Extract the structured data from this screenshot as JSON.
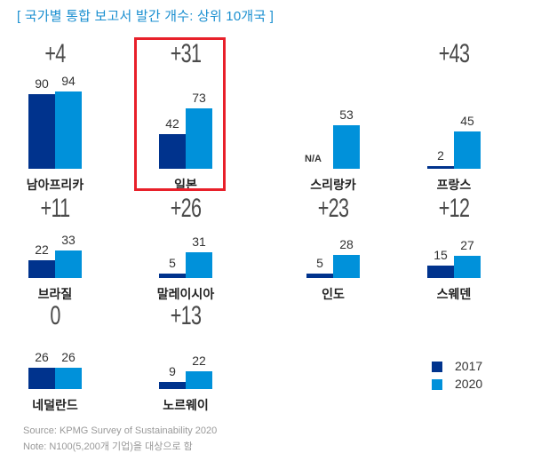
{
  "chart_data": {
    "type": "bar",
    "title": "[ 국가별 통합 보고서 발간 개수: 상위 10개국 ]",
    "series": [
      {
        "name": "2017",
        "color": "#00338d"
      },
      {
        "name": "2020",
        "color": "#0091da"
      }
    ],
    "legend_position": "bottom-right",
    "panels": [
      {
        "country": "남아프리카",
        "v2017": 90,
        "v2020": 94,
        "label2017": "90",
        "label2020": "94",
        "delta": "+4",
        "highlight": false
      },
      {
        "country": "일본",
        "v2017": 42,
        "v2020": 73,
        "label2017": "42",
        "label2020": "73",
        "delta": "+31",
        "highlight": true
      },
      {
        "country": "스리랑카",
        "v2017": null,
        "v2020": 53,
        "label2017": "N/A",
        "label2020": "53",
        "delta": "",
        "highlight": false
      },
      {
        "country": "프랑스",
        "v2017": 2,
        "v2020": 45,
        "label2017": "2",
        "label2020": "45",
        "delta": "+43",
        "highlight": false
      },
      {
        "country": "브라질",
        "v2017": 22,
        "v2020": 33,
        "label2017": "22",
        "label2020": "33",
        "delta": "+11",
        "highlight": false
      },
      {
        "country": "말레이시아",
        "v2017": 5,
        "v2020": 31,
        "label2017": "5",
        "label2020": "31",
        "delta": "+26",
        "highlight": false
      },
      {
        "country": "인도",
        "v2017": 5,
        "v2020": 28,
        "label2017": "5",
        "label2020": "28",
        "delta": "+23",
        "highlight": false
      },
      {
        "country": "스웨덴",
        "v2017": 15,
        "v2020": 27,
        "label2017": "15",
        "label2020": "27",
        "delta": "+12",
        "highlight": false
      },
      {
        "country": "네덜란드",
        "v2017": 26,
        "v2020": 26,
        "label2017": "26",
        "label2020": "26",
        "delta": "0",
        "highlight": false
      },
      {
        "country": "노르웨이",
        "v2017": 9,
        "v2020": 22,
        "label2017": "9",
        "label2020": "22",
        "delta": "+13",
        "highlight": false
      }
    ]
  },
  "footer": {
    "source": "Source: KPMG Survey of Sustainability 2020",
    "note": "Note: N100(5,200개 기업)을 대상으로 함"
  }
}
